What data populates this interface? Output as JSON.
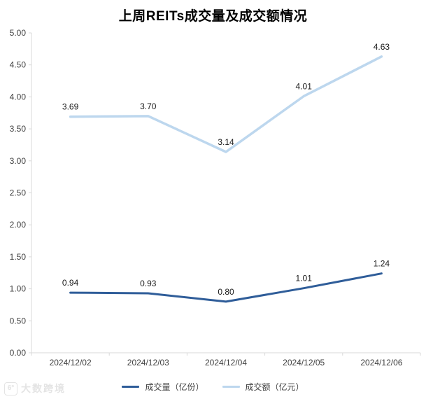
{
  "title": "上周REITs成交量及成交额情况",
  "watermark": {
    "text": "大数跨境",
    "logo_icon": "bigdata-logo-icon"
  },
  "chart_data": {
    "type": "line",
    "title": "上周REITs成交量及成交额情况",
    "categories": [
      "2024/12/02",
      "2024/12/03",
      "2024/12/04",
      "2024/12/05",
      "2024/12/06"
    ],
    "series": [
      {
        "name": "成交量（亿份）",
        "values": [
          0.94,
          0.93,
          0.8,
          1.01,
          1.24
        ],
        "color": "#2F5D99",
        "stroke_width": 3
      },
      {
        "name": "成交额（亿元）",
        "values": [
          3.69,
          3.7,
          3.14,
          4.01,
          4.63
        ],
        "color": "#BDD7EE",
        "stroke_width": 3.5
      }
    ],
    "xlabel": "",
    "ylabel": "",
    "ylim": [
      0,
      5
    ],
    "ytick_step": 0.5,
    "ytick_format_decimals": 2,
    "grid": false,
    "data_labels": true,
    "legend_position": "bottom",
    "axis_color": "#D9D9D9",
    "axis_label_color": "#404040",
    "data_label_color": "#1a1a1a"
  }
}
